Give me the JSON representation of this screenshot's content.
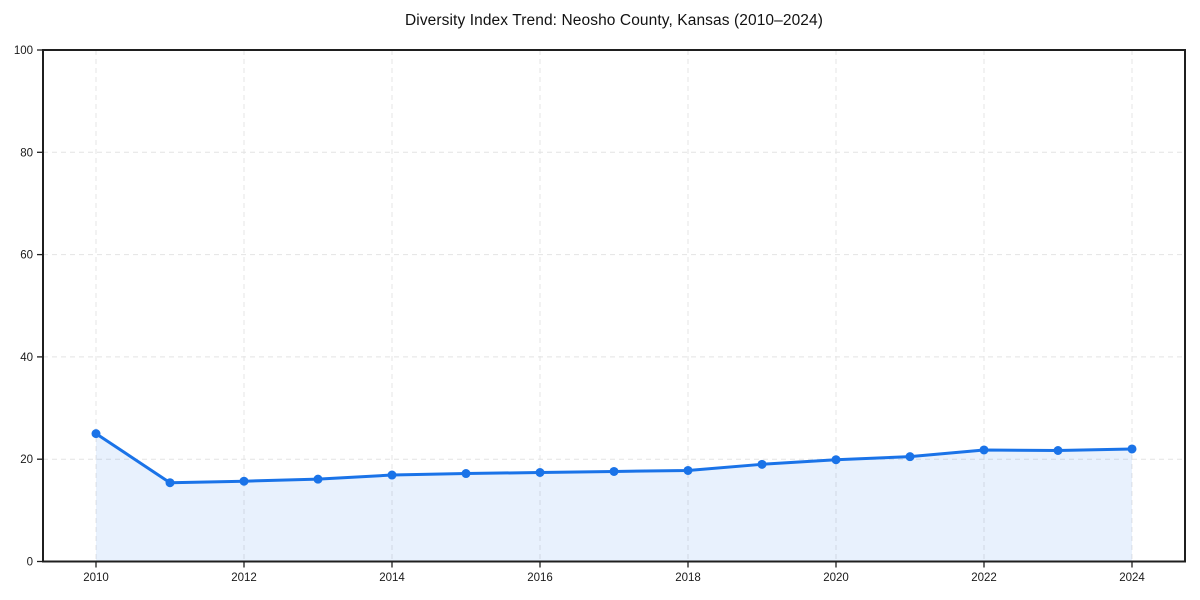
{
  "figure": {
    "background": "#ffffff"
  },
  "chart_data": {
    "type": "line",
    "title": "Diversity Index Trend: Neosho County, Kansas (2010–2024)",
    "x": [
      2010,
      2011,
      2012,
      2013,
      2014,
      2015,
      2016,
      2017,
      2018,
      2019,
      2020,
      2021,
      2022,
      2023,
      2024
    ],
    "series": [
      {
        "name": "Diversity Index",
        "values": [
          25.0,
          15.4,
          15.7,
          16.1,
          16.9,
          17.2,
          17.4,
          17.6,
          17.8,
          19.0,
          19.9,
          20.5,
          21.8,
          21.7,
          22.0
        ]
      }
    ],
    "xlabel": "",
    "ylabel": "",
    "ylim": [
      0,
      100
    ],
    "yticks": [
      0,
      20,
      40,
      60,
      80,
      100
    ],
    "xticks": [
      2010,
      2012,
      2014,
      2016,
      2018,
      2020,
      2022,
      2024
    ],
    "grid": true,
    "grid_style": "dashed",
    "grid_color": "#e4e4e4",
    "legend": "none",
    "line_color": "#1a73e8",
    "fill_color": "rgba(26,115,232,0.10)",
    "marker": "circle",
    "frame_color": "#1f1f1f"
  }
}
